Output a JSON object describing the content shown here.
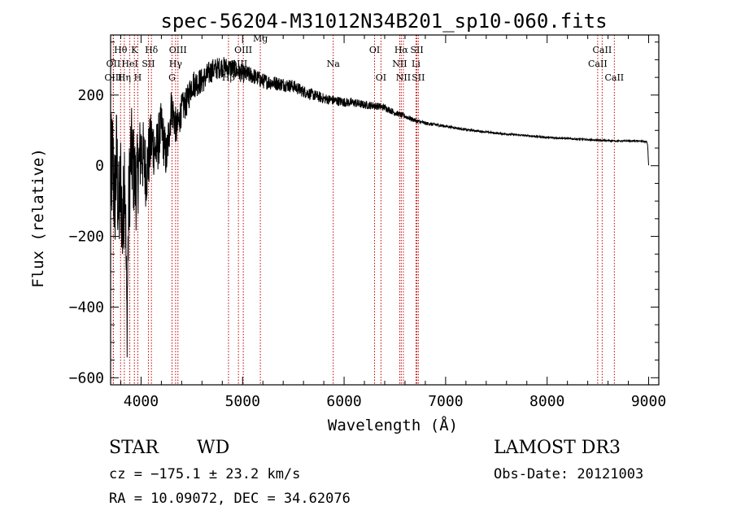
{
  "chart_data": {
    "type": "line",
    "title": "spec-56204-M31012N34B201_sp10-060.fits",
    "xlabel": "Wavelength (Å)",
    "ylabel": "Flux (relative)",
    "xlim": [
      3700,
      9100
    ],
    "ylim": [
      -620,
      370
    ],
    "xticks": [
      4000,
      5000,
      6000,
      7000,
      8000,
      9000
    ],
    "yticks": [
      -600,
      -400,
      -200,
      0,
      200
    ],
    "spectrum_anchors": {
      "x": [
        3700,
        3720,
        3740,
        3760,
        3780,
        3800,
        3820,
        3840,
        3860,
        3880,
        3900,
        3950,
        4000,
        4050,
        4100,
        4150,
        4200,
        4250,
        4300,
        4350,
        4400,
        4450,
        4500,
        4600,
        4700,
        4800,
        4900,
        5000,
        5100,
        5200,
        5300,
        5400,
        5500,
        5600,
        5700,
        5800,
        5900,
        6000,
        6100,
        6200,
        6300,
        6400,
        6500,
        6600,
        6700,
        6800,
        7000,
        7200,
        7500,
        7800,
        8000,
        8200,
        8500,
        8700,
        8900,
        8980,
        8990,
        9000
      ],
      "y": [
        -50,
        10,
        -100,
        20,
        -150,
        -40,
        -200,
        30,
        -450,
        -100,
        40,
        -60,
        50,
        -20,
        70,
        40,
        110,
        20,
        170,
        100,
        160,
        180,
        230,
        240,
        270,
        280,
        275,
        260,
        255,
        240,
        235,
        230,
        225,
        210,
        200,
        190,
        185,
        180,
        178,
        172,
        170,
        165,
        150,
        140,
        128,
        120,
        112,
        102,
        92,
        85,
        80,
        77,
        72,
        70,
        70,
        68,
        60,
        0
      ]
    },
    "noise": {
      "x": [
        3700,
        3900,
        4100,
        4400,
        4800,
        5200,
        5800,
        6400,
        6700,
        7200,
        9000
      ],
      "amplitude": [
        180,
        140,
        90,
        45,
        30,
        22,
        15,
        10,
        6,
        3,
        2
      ]
    },
    "spectral_lines": [
      {
        "label": "Hθ",
        "wavelength": 3798,
        "row": 1
      },
      {
        "label": "OII",
        "wavelength": 3727,
        "row": 2
      },
      {
        "label": "OIII",
        "wavelength": 3727,
        "row": 3
      },
      {
        "label": "Hη",
        "wavelength": 3835,
        "row": 3
      },
      {
        "label": "HeI",
        "wavelength": 3889,
        "row": 2
      },
      {
        "label": "K",
        "wavelength": 3934,
        "row": 1
      },
      {
        "label": "H",
        "wavelength": 3968,
        "row": 3
      },
      {
        "label": "SII",
        "wavelength": 4072,
        "row": 2
      },
      {
        "label": "Hδ",
        "wavelength": 4102,
        "row": 1
      },
      {
        "label": "OIII",
        "wavelength": 4363,
        "row": 1
      },
      {
        "label": "Hγ",
        "wavelength": 4340,
        "row": 2
      },
      {
        "label": "G",
        "wavelength": 4305,
        "row": 3
      },
      {
        "label": "Hβ",
        "wavelength": 4861,
        "row": 3
      },
      {
        "label": "OIII",
        "wavelength": 5007,
        "row": 1
      },
      {
        "label": "OIII",
        "wavelength": 4959,
        "row": 2
      },
      {
        "label": "Mg",
        "wavelength": 5175,
        "row": 0
      },
      {
        "label": "Na",
        "wavelength": 5893,
        "row": 2
      },
      {
        "label": "OI",
        "wavelength": 6300,
        "row": 1
      },
      {
        "label": "OI",
        "wavelength": 6363,
        "row": 3
      },
      {
        "label": "Hα",
        "wavelength": 6563,
        "row": 1
      },
      {
        "label": "NII",
        "wavelength": 6548,
        "row": 2
      },
      {
        "label": "NII",
        "wavelength": 6584,
        "row": 3
      },
      {
        "label": "SII",
        "wavelength": 6717,
        "row": 1
      },
      {
        "label": "Li",
        "wavelength": 6708,
        "row": 2
      },
      {
        "label": "SII",
        "wavelength": 6731,
        "row": 3
      },
      {
        "label": "CaII",
        "wavelength": 8542,
        "row": 1
      },
      {
        "label": "CaII",
        "wavelength": 8498,
        "row": 2
      },
      {
        "label": "CaII",
        "wavelength": 8662,
        "row": 3
      }
    ]
  },
  "info": {
    "class_label": "STAR",
    "subclass_label": "WD",
    "cz_text": "cz = −175.1 ± 23.2 km/s",
    "radec_text": "RA =  10.09072, DEC =  34.62076",
    "survey_text": "LAMOST DR3",
    "obsdate_text": "Obs-Date: 20121003"
  },
  "colors": {
    "line_marker": "#c00000",
    "spectrum": "#000000"
  }
}
